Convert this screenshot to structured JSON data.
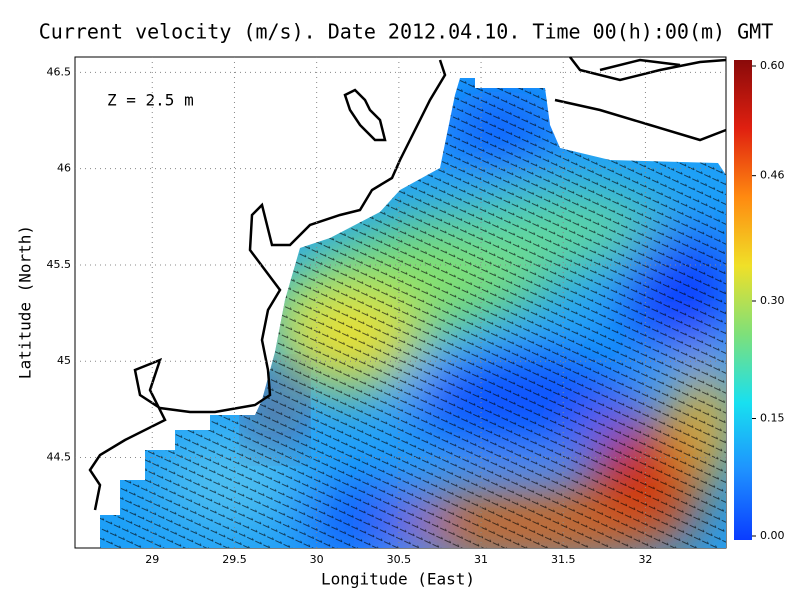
{
  "chart_data": {
    "type": "map",
    "title": "Current velocity (m/s). Date 2012.04.10. Time 00(h):00(m) GMT",
    "annotation": "Z = 2.5 m",
    "x_label": "Longitude (East)",
    "y_label": "Latitude (North)",
    "xlim": [
      28.53,
      32.49
    ],
    "ylim": [
      44.03,
      46.58
    ],
    "xticks": [
      29,
      29.5,
      30,
      30.5,
      31,
      31.5,
      32
    ],
    "yticks": [
      44.5,
      45,
      45.5,
      46,
      46.5
    ],
    "grid": true,
    "colorbar": {
      "lim": [
        0,
        0.6
      ],
      "ticks": [
        {
          "value": 0,
          "label": "0.00"
        },
        {
          "value": 0.15,
          "label": "0.15"
        },
        {
          "value": 0.3,
          "label": "0.30"
        },
        {
          "value": 0.46,
          "label": "0.46"
        },
        {
          "value": 0.6,
          "label": "0.60"
        }
      ],
      "colors": [
        "#0a3cff",
        "#1e90ff",
        "#18e0f0",
        "#7ee07a",
        "#f0e028",
        "#ff8a10",
        "#e02010",
        "#8a0a0a"
      ]
    }
  }
}
